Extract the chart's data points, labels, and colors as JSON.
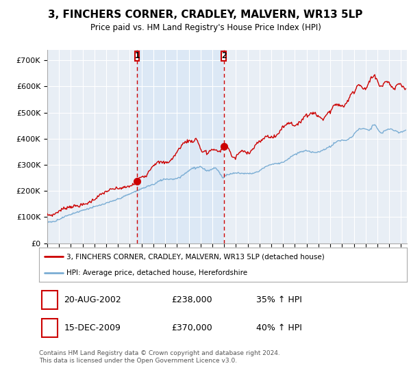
{
  "title": "3, FINCHERS CORNER, CRADLEY, MALVERN, WR13 5LP",
  "subtitle": "Price paid vs. HM Land Registry's House Price Index (HPI)",
  "yticks": [
    0,
    100000,
    200000,
    300000,
    400000,
    500000,
    600000,
    700000
  ],
  "ytick_labels": [
    "£0",
    "£100K",
    "£200K",
    "£300K",
    "£400K",
    "£500K",
    "£600K",
    "£700K"
  ],
  "xlim_start": 1995.0,
  "xlim_end": 2025.5,
  "ylim": [
    0,
    740000
  ],
  "background_color": "#e8eef5",
  "shaded_color": "#dce8f5",
  "grid_color": "#ffffff",
  "red_line_color": "#cc0000",
  "blue_line_color": "#7aadd4",
  "purchase1_x": 2002.63,
  "purchase1_y": 238000,
  "purchase1_label": "1",
  "purchase2_x": 2009.96,
  "purchase2_y": 370000,
  "purchase2_label": "2",
  "legend_red_label": "3, FINCHERS CORNER, CRADLEY, MALVERN, WR13 5LP (detached house)",
  "legend_blue_label": "HPI: Average price, detached house, Herefordshire",
  "note1_label": "1",
  "note1_date": "20-AUG-2002",
  "note1_price": "£238,000",
  "note1_hpi": "35% ↑ HPI",
  "note2_label": "2",
  "note2_date": "15-DEC-2009",
  "note2_price": "£370,000",
  "note2_hpi": "40% ↑ HPI",
  "footer": "Contains HM Land Registry data © Crown copyright and database right 2024.\nThis data is licensed under the Open Government Licence v3.0."
}
